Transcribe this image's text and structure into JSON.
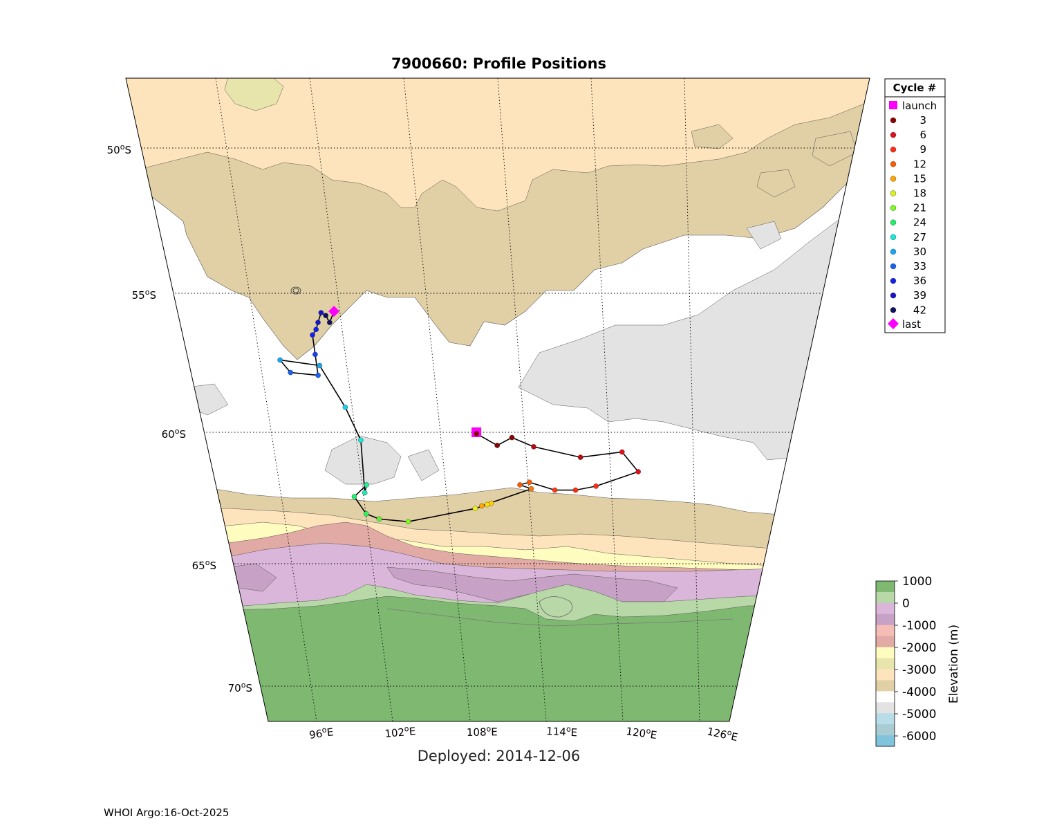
{
  "title": "7900660: Profile Positions",
  "deployed": "Deployed: 2014-12-06",
  "footer": "WHOI Argo:16-Oct-2025",
  "axes": {
    "lat_labels": [
      "50",
      "55",
      "60",
      "65",
      "70"
    ],
    "lat_suffix": "S",
    "lon_labels": [
      "96",
      "102",
      "108",
      "114",
      "120",
      "126"
    ],
    "lon_suffix": "E",
    "degree_symbol": "o"
  },
  "legend": {
    "title": "Cycle #",
    "launch_label": "launch",
    "last_label": "last",
    "entries": [
      {
        "label": "3",
        "color": "#8b0000"
      },
      {
        "label": "6",
        "color": "#e0101b"
      },
      {
        "label": "9",
        "color": "#ff2b14"
      },
      {
        "label": "12",
        "color": "#ff5a00"
      },
      {
        "label": "15",
        "color": "#ffa500"
      },
      {
        "label": "18",
        "color": "#d9f21a"
      },
      {
        "label": "21",
        "color": "#7cfc1e"
      },
      {
        "label": "24",
        "color": "#1cf26a"
      },
      {
        "label": "27",
        "color": "#10ecd8"
      },
      {
        "label": "30",
        "color": "#16a8f0"
      },
      {
        "label": "33",
        "color": "#1663f2"
      },
      {
        "label": "36",
        "color": "#1020f5"
      },
      {
        "label": "39",
        "color": "#1414c8"
      },
      {
        "label": "42",
        "color": "#101060"
      }
    ],
    "launch_color": "#ff00ff",
    "last_color": "#ff00ff"
  },
  "colorbar": {
    "label": "Elevation (m)",
    "tick_labels": [
      "1000",
      "0",
      "-1000",
      "-2000",
      "-3000",
      "-4000",
      "-5000",
      "-6000"
    ],
    "colors_top_to_bottom": [
      "#7fb971",
      "#b8d8a8",
      "#dab6da",
      "#c7a2c6",
      "#f5bdb5",
      "#e2aaa4",
      "#fffcc0",
      "#e7e4ac",
      "#fde4bc",
      "#e1cfa6",
      "#ffffff",
      "#e3e3e3",
      "#b9dce9",
      "#a9ccd3",
      "#80c4dc"
    ]
  },
  "map": {
    "lon_range": [
      93,
      126
    ],
    "lat_range": [
      -71.5,
      -47.5
    ],
    "projection": "conic trapezoid",
    "bathymetry_classes": [
      "land",
      "ice shelf",
      "0 to -1000",
      "-1000 to -2000",
      "-2000 to -3000",
      "-3000 to -4000",
      "-4000 to -5000",
      "-5000 to -6000"
    ]
  },
  "track": {
    "launch": {
      "lon": 110.6,
      "lat": -60.0
    },
    "last": {
      "lon": 101.6,
      "lat": -55.65
    },
    "profiles": [
      {
        "cycle": 1,
        "lon": 110.6,
        "lat": -60.05,
        "color": "#8b0000"
      },
      {
        "cycle": 2,
        "lon": 112.0,
        "lat": -60.5,
        "color": "#8b0000"
      },
      {
        "cycle": 3,
        "lon": 113.1,
        "lat": -60.2,
        "color": "#8b0000"
      },
      {
        "cycle": 4,
        "lon": 114.6,
        "lat": -60.55,
        "color": "#c00510"
      },
      {
        "cycle": 5,
        "lon": 117.9,
        "lat": -60.95,
        "color": "#c00510"
      },
      {
        "cycle": 6,
        "lon": 120.9,
        "lat": -60.75,
        "color": "#e0101b"
      },
      {
        "cycle": 7,
        "lon": 122.0,
        "lat": -61.5,
        "color": "#e0101b"
      },
      {
        "cycle": 8,
        "lon": 118.9,
        "lat": -62.05,
        "color": "#ff2b14"
      },
      {
        "cycle": 9,
        "lon": 117.4,
        "lat": -62.2,
        "color": "#ff2b14"
      },
      {
        "cycle": 10,
        "lon": 115.9,
        "lat": -62.2,
        "color": "#ff3a10"
      },
      {
        "cycle": 11,
        "lon": 114.1,
        "lat": -61.9,
        "color": "#ff5a00"
      },
      {
        "cycle": 12,
        "lon": 113.4,
        "lat": -62.0,
        "color": "#ff5a00"
      },
      {
        "cycle": 13,
        "lon": 114.2,
        "lat": -62.15,
        "color": "#ff7a00"
      },
      {
        "cycle": 14,
        "lon": 110.5,
        "lat": -62.8,
        "color": "#ffa500"
      },
      {
        "cycle": 15,
        "lon": 111.2,
        "lat": -62.7,
        "color": "#ffd000"
      },
      {
        "cycle": 16,
        "lon": 110.9,
        "lat": -62.75,
        "color": "#ffe000"
      },
      {
        "cycle": 17,
        "lon": 110.0,
        "lat": -62.9,
        "color": "#f2f21a"
      },
      {
        "cycle": 18,
        "lon": 105.0,
        "lat": -63.4,
        "color": "#7cfc1e"
      },
      {
        "cycle": 19,
        "lon": 102.9,
        "lat": -63.3,
        "color": "#5af53a"
      },
      {
        "cycle": 20,
        "lon": 102.0,
        "lat": -63.1,
        "color": "#2ef25a"
      },
      {
        "cycle": 21,
        "lon": 101.3,
        "lat": -62.45,
        "color": "#1cf26a"
      },
      {
        "cycle": 22,
        "lon": 102.3,
        "lat": -62.0,
        "color": "#1cf29a"
      },
      {
        "cycle": 23,
        "lon": 102.1,
        "lat": -62.3,
        "color": "#1cecb8"
      },
      {
        "cycle": 24,
        "lon": 102.3,
        "lat": -60.3,
        "color": "#10ecd8"
      },
      {
        "cycle": 25,
        "lon": 101.5,
        "lat": -59.1,
        "color": "#10d4ec"
      },
      {
        "cycle": 26,
        "lon": 100.1,
        "lat": -57.6,
        "color": "#16a8f0"
      },
      {
        "cycle": 27,
        "lon": 97.4,
        "lat": -57.4,
        "color": "#16a8f0"
      },
      {
        "cycle": 28,
        "lon": 98.0,
        "lat": -57.85,
        "color": "#1663f2"
      },
      {
        "cycle": 29,
        "lon": 99.9,
        "lat": -57.95,
        "color": "#1663f2"
      },
      {
        "cycle": 30,
        "lon": 99.9,
        "lat": -57.2,
        "color": "#1a40f2"
      },
      {
        "cycle": 31,
        "lon": 99.9,
        "lat": -56.5,
        "color": "#1020f5"
      },
      {
        "cycle": 32,
        "lon": 100.2,
        "lat": -56.3,
        "color": "#1020f5"
      },
      {
        "cycle": 33,
        "lon": 100.4,
        "lat": -56.05,
        "color": "#1414c8"
      },
      {
        "cycle": 34,
        "lon": 100.7,
        "lat": -55.7,
        "color": "#1414c8"
      },
      {
        "cycle": 35,
        "lon": 101.0,
        "lat": -55.8,
        "color": "#101060"
      },
      {
        "cycle": 36,
        "lon": 101.2,
        "lat": -56.05,
        "color": "#101060"
      },
      {
        "cycle": 37,
        "lon": 101.6,
        "lat": -55.65,
        "color": "#ff00ff"
      }
    ]
  }
}
